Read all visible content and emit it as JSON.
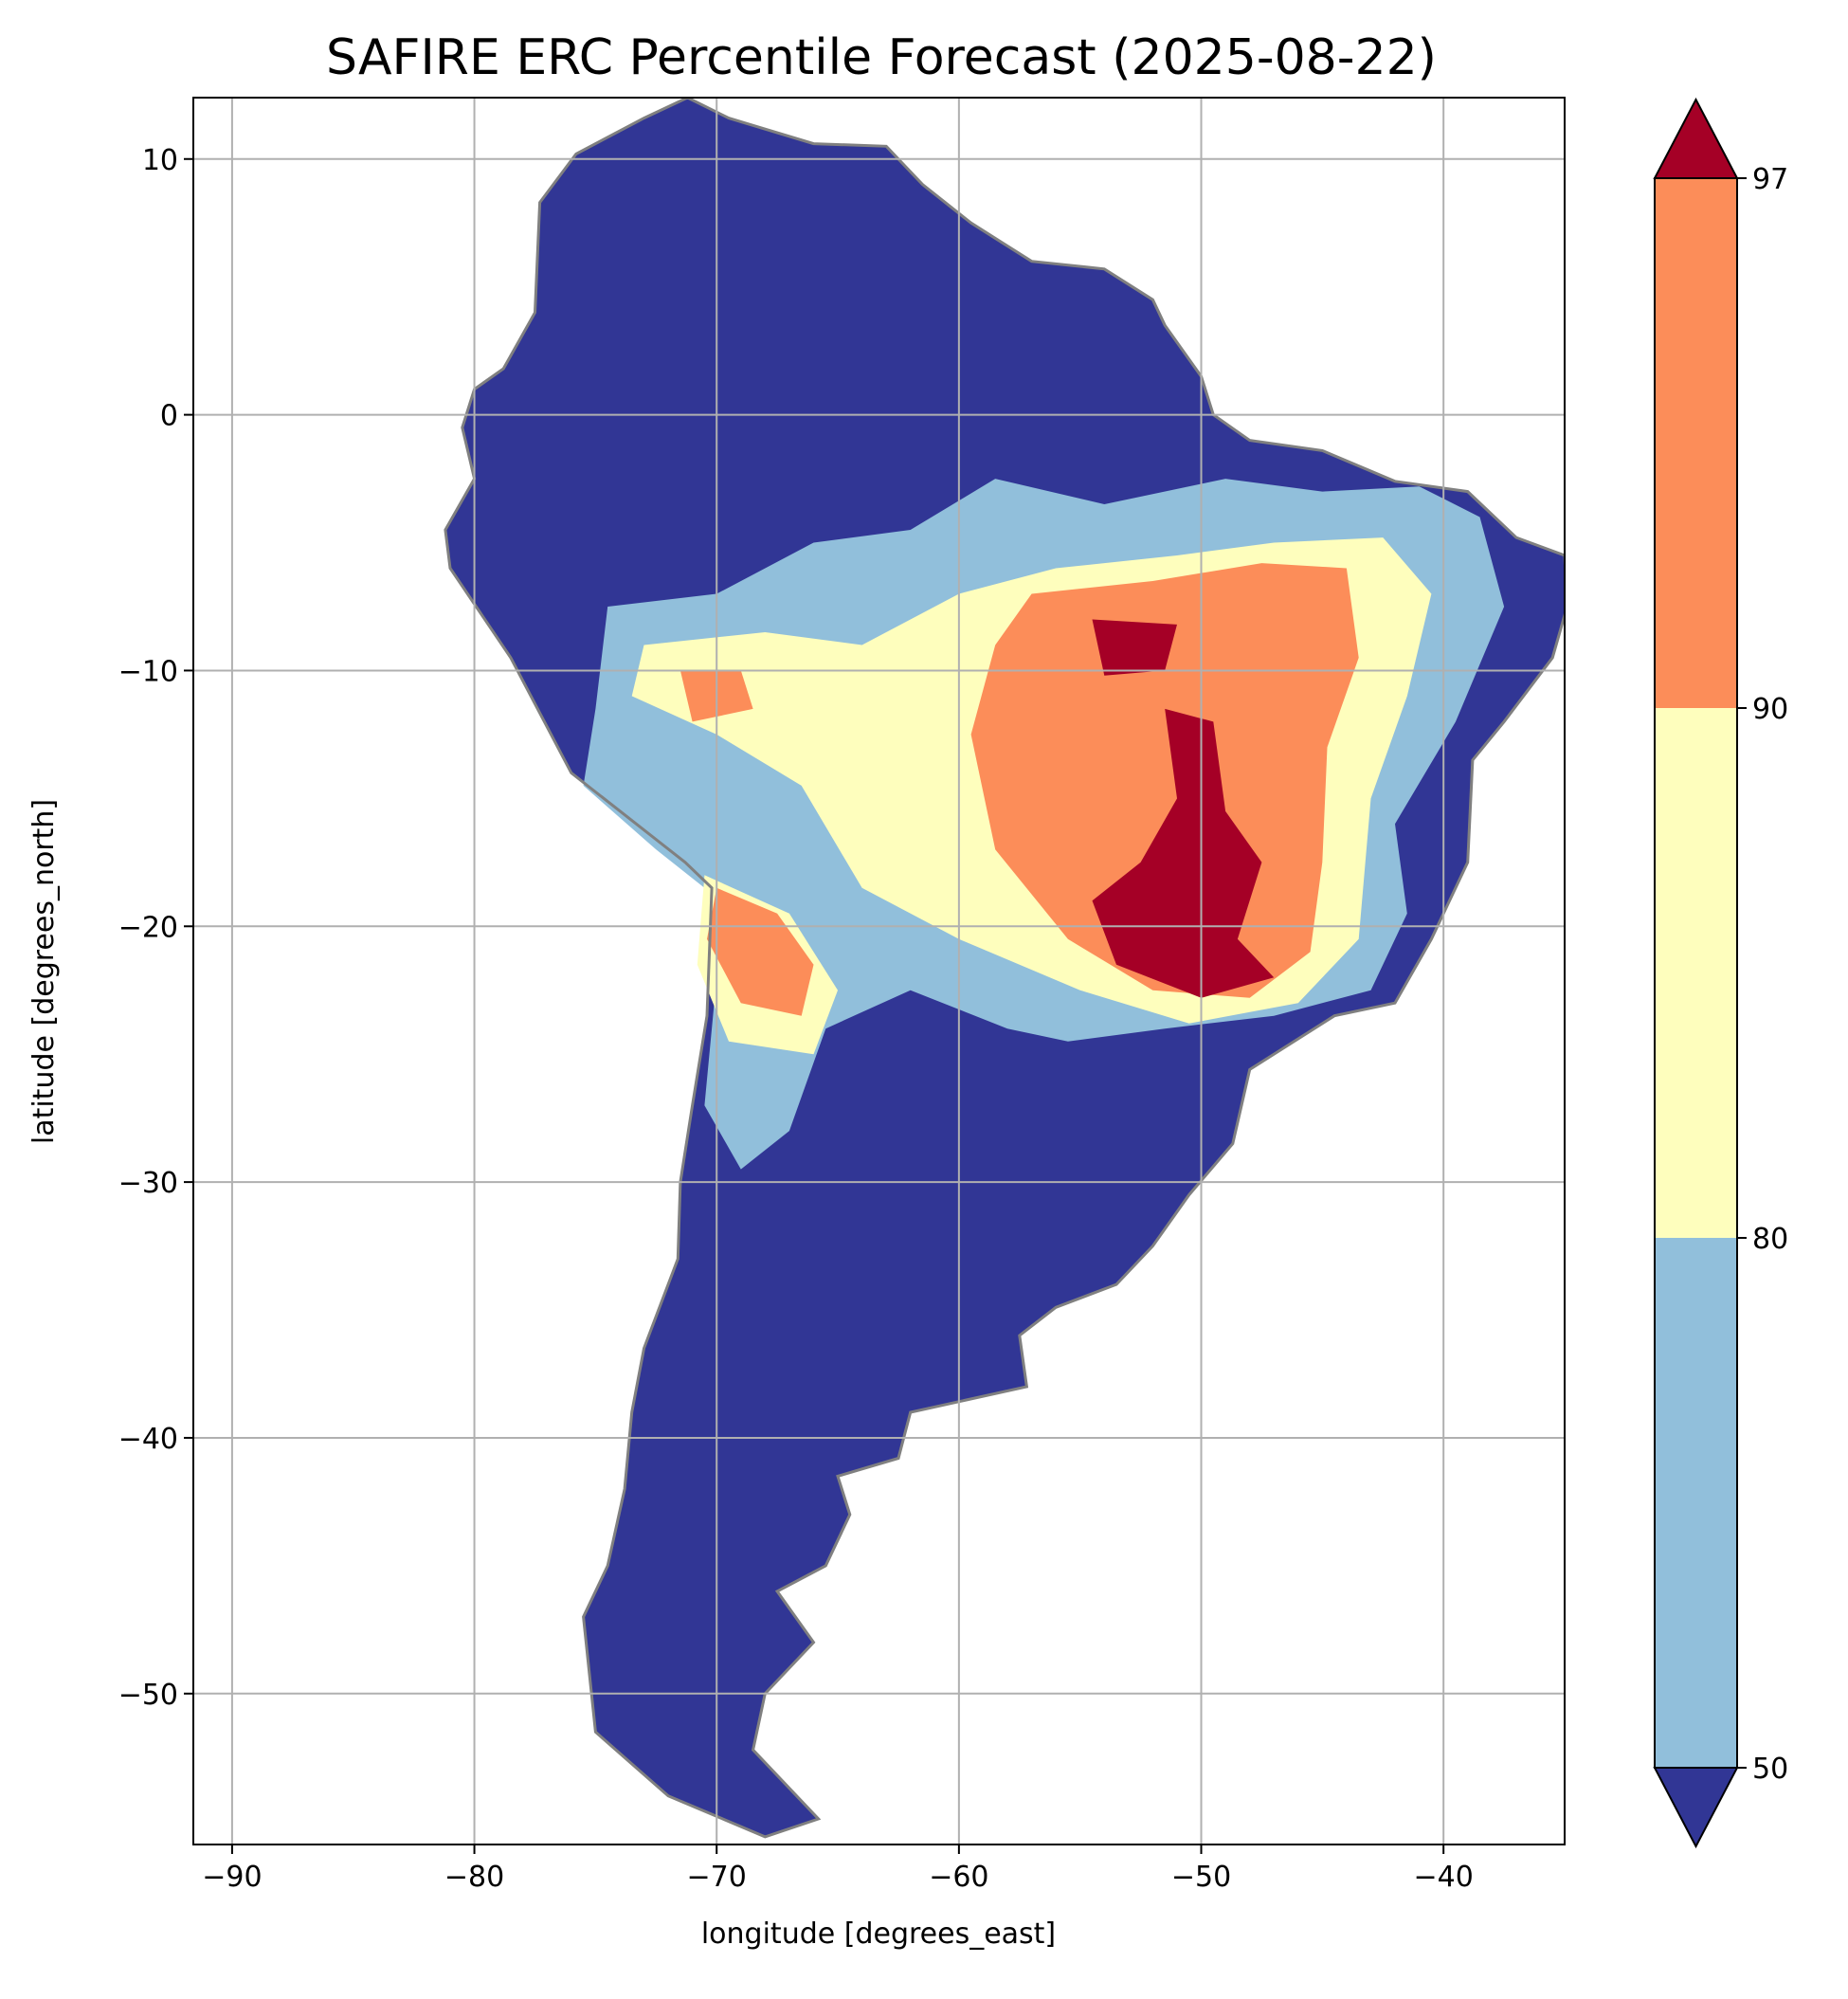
{
  "title": "SAFIRE ERC Percentile Forecast (2025-08-22)",
  "x_axis": {
    "label": "longitude [degrees_east]",
    "min": -91.6,
    "max": -35.0,
    "ticks": [
      -90,
      -80,
      -70,
      -60,
      -50,
      -40
    ],
    "tick_labels": [
      "−90",
      "−80",
      "−70",
      "−60",
      "−50",
      "−40"
    ]
  },
  "y_axis": {
    "label": "latitude [degrees_north]",
    "min": -55.9,
    "max": 12.4,
    "ticks": [
      10,
      0,
      -10,
      -20,
      -30,
      -40,
      -50
    ],
    "tick_labels": [
      "10",
      "0",
      "−10",
      "−20",
      "−30",
      "−40",
      "−50"
    ]
  },
  "grid": true,
  "colorbar": {
    "position": "right",
    "extend": "both",
    "boundaries": [
      50,
      80,
      90,
      97
    ],
    "tick_labels": [
      "50",
      "80",
      "90",
      "97"
    ],
    "colors": {
      "below_50": "#313695",
      "50_80": "#91bfdb",
      "80_90": "#fefebd",
      "90_97": "#fc8d59",
      "above_97": "#a50026"
    }
  },
  "colors": {
    "land_low": "#313695",
    "border": "#808080",
    "grid": "#b0b0b0"
  },
  "chart_data": {
    "type": "heatmap",
    "title": "SAFIRE ERC Percentile Forecast (2025-08-22)",
    "xlabel": "longitude [degrees_east]",
    "ylabel": "latitude [degrees_north]",
    "xlim": [
      -91.6,
      -35.0
    ],
    "ylim": [
      -55.9,
      12.4
    ],
    "legend": "colorbar right",
    "continent_outline_lonlat": [
      [
        -77.3,
        8.3
      ],
      [
        -75.8,
        10.2
      ],
      [
        -73.0,
        11.6
      ],
      [
        -71.2,
        12.4
      ],
      [
        -69.5,
        11.6
      ],
      [
        -66.0,
        10.6
      ],
      [
        -63.0,
        10.5
      ],
      [
        -61.5,
        9.0
      ],
      [
        -59.5,
        7.5
      ],
      [
        -57.0,
        6.0
      ],
      [
        -54.0,
        5.7
      ],
      [
        -52.0,
        4.5
      ],
      [
        -51.5,
        3.5
      ],
      [
        -50.0,
        1.5
      ],
      [
        -49.5,
        0.0
      ],
      [
        -48.0,
        -1.0
      ],
      [
        -45.0,
        -1.4
      ],
      [
        -42.0,
        -2.6
      ],
      [
        -39.0,
        -3.0
      ],
      [
        -37.0,
        -4.8
      ],
      [
        -35.0,
        -5.5
      ],
      [
        -34.9,
        -7.5
      ],
      [
        -35.5,
        -9.5
      ],
      [
        -37.5,
        -12.0
      ],
      [
        -38.8,
        -13.5
      ],
      [
        -39.0,
        -17.5
      ],
      [
        -40.5,
        -20.5
      ],
      [
        -42.0,
        -23.0
      ],
      [
        -44.5,
        -23.5
      ],
      [
        -48.0,
        -25.6
      ],
      [
        -48.7,
        -28.5
      ],
      [
        -50.5,
        -30.5
      ],
      [
        -52.0,
        -32.5
      ],
      [
        -53.5,
        -34.0
      ],
      [
        -56.0,
        -34.9
      ],
      [
        -57.5,
        -36.0
      ],
      [
        -57.2,
        -38.0
      ],
      [
        -62.0,
        -39.0
      ],
      [
        -62.5,
        -40.8
      ],
      [
        -65.0,
        -41.5
      ],
      [
        -64.5,
        -43.0
      ],
      [
        -65.5,
        -45.0
      ],
      [
        -67.5,
        -46.0
      ],
      [
        -66.0,
        -48.0
      ],
      [
        -68.0,
        -50.0
      ],
      [
        -68.5,
        -52.2
      ],
      [
        -65.8,
        -54.9
      ],
      [
        -68.0,
        -55.6
      ],
      [
        -72.0,
        -54.0
      ],
      [
        -75.0,
        -51.5
      ],
      [
        -75.5,
        -47.0
      ],
      [
        -74.5,
        -45.0
      ],
      [
        -73.8,
        -42.0
      ],
      [
        -73.5,
        -39.0
      ],
      [
        -73.0,
        -36.5
      ],
      [
        -71.6,
        -33.0
      ],
      [
        -71.5,
        -30.0
      ],
      [
        -71.0,
        -27.0
      ],
      [
        -70.4,
        -23.5
      ],
      [
        -70.2,
        -18.5
      ],
      [
        -71.3,
        -17.5
      ],
      [
        -76.0,
        -14.0
      ],
      [
        -78.5,
        -9.5
      ],
      [
        -81.0,
        -6.0
      ],
      [
        -81.2,
        -4.5
      ],
      [
        -80.0,
        -2.5
      ],
      [
        -80.5,
        -0.5
      ],
      [
        -80.0,
        1.0
      ],
      [
        -78.8,
        1.8
      ],
      [
        -77.5,
        4.0
      ],
      [
        -77.3,
        8.3
      ]
    ],
    "zones": [
      {
        "category": "50_80",
        "polygon_lonlat": [
          [
            -74.5,
            -7.5
          ],
          [
            -70.0,
            -7.0
          ],
          [
            -66.0,
            -5.0
          ],
          [
            -62.0,
            -4.5
          ],
          [
            -58.5,
            -2.5
          ],
          [
            -54.0,
            -3.5
          ],
          [
            -49.0,
            -2.5
          ],
          [
            -45.0,
            -3.0
          ],
          [
            -41.0,
            -2.8
          ],
          [
            -38.5,
            -4.0
          ],
          [
            -37.5,
            -7.5
          ],
          [
            -39.5,
            -12.0
          ],
          [
            -42.0,
            -16.0
          ],
          [
            -41.5,
            -19.5
          ],
          [
            -43.0,
            -22.5
          ],
          [
            -47.0,
            -23.5
          ],
          [
            -51.5,
            -24.0
          ],
          [
            -55.5,
            -24.5
          ],
          [
            -58.0,
            -24.0
          ],
          [
            -62.0,
            -22.5
          ],
          [
            -65.5,
            -24.0
          ],
          [
            -67.0,
            -28.0
          ],
          [
            -69.0,
            -29.5
          ],
          [
            -70.5,
            -27.0
          ],
          [
            -70.0,
            -22.0
          ],
          [
            -70.5,
            -18.5
          ],
          [
            -72.5,
            -17.0
          ],
          [
            -75.5,
            -14.5
          ],
          [
            -75.0,
            -11.5
          ]
        ]
      },
      {
        "category": "80_90",
        "polygon_lonlat": [
          [
            -73.0,
            -9.0
          ],
          [
            -68.0,
            -8.5
          ],
          [
            -64.0,
            -9.0
          ],
          [
            -60.0,
            -7.0
          ],
          [
            -56.0,
            -6.0
          ],
          [
            -51.0,
            -5.5
          ],
          [
            -47.0,
            -5.0
          ],
          [
            -42.5,
            -4.8
          ],
          [
            -40.5,
            -7.0
          ],
          [
            -41.5,
            -11.0
          ],
          [
            -43.0,
            -15.0
          ],
          [
            -43.5,
            -20.5
          ],
          [
            -46.0,
            -23.0
          ],
          [
            -50.5,
            -23.8
          ],
          [
            -55.0,
            -22.5
          ],
          [
            -60.0,
            -20.5
          ],
          [
            -64.0,
            -18.5
          ],
          [
            -66.5,
            -14.5
          ],
          [
            -70.0,
            -12.5
          ],
          [
            -73.5,
            -11.0
          ]
        ]
      },
      {
        "category": "80_90",
        "polygon_lonlat": [
          [
            -70.5,
            -18.0
          ],
          [
            -67.0,
            -19.5
          ],
          [
            -65.0,
            -22.5
          ],
          [
            -66.0,
            -25.0
          ],
          [
            -69.5,
            -24.5
          ],
          [
            -70.8,
            -21.5
          ]
        ]
      },
      {
        "category": "90_97",
        "polygon_lonlat": [
          [
            -57.0,
            -7.0
          ],
          [
            -52.0,
            -6.5
          ],
          [
            -47.5,
            -5.8
          ],
          [
            -44.0,
            -6.0
          ],
          [
            -43.5,
            -9.5
          ],
          [
            -44.8,
            -13.0
          ],
          [
            -45.0,
            -17.5
          ],
          [
            -45.5,
            -21.0
          ],
          [
            -48.0,
            -22.8
          ],
          [
            -52.0,
            -22.5
          ],
          [
            -55.5,
            -20.5
          ],
          [
            -58.5,
            -17.0
          ],
          [
            -59.5,
            -12.5
          ],
          [
            -58.5,
            -9.0
          ]
        ]
      },
      {
        "category": "90_97",
        "polygon_lonlat": [
          [
            -70.0,
            -18.5
          ],
          [
            -67.5,
            -19.5
          ],
          [
            -66.0,
            -21.5
          ],
          [
            -66.5,
            -23.5
          ],
          [
            -69.0,
            -23.0
          ],
          [
            -70.4,
            -20.5
          ]
        ]
      },
      {
        "category": "90_97",
        "polygon_lonlat": [
          [
            -71.5,
            -10.0
          ],
          [
            -69.0,
            -10.0
          ],
          [
            -68.5,
            -11.5
          ],
          [
            -71.0,
            -12.0
          ]
        ]
      },
      {
        "category": "above_97",
        "polygon_lonlat": [
          [
            -54.5,
            -8.0
          ],
          [
            -51.0,
            -8.2
          ],
          [
            -51.5,
            -10.0
          ],
          [
            -54.0,
            -10.2
          ]
        ]
      },
      {
        "category": "above_97",
        "polygon_lonlat": [
          [
            -51.5,
            -11.5
          ],
          [
            -49.5,
            -12.0
          ],
          [
            -49.0,
            -15.5
          ],
          [
            -47.5,
            -17.5
          ],
          [
            -48.5,
            -20.5
          ],
          [
            -47.0,
            -22.0
          ],
          [
            -50.0,
            -22.8
          ],
          [
            -53.5,
            -21.5
          ],
          [
            -54.5,
            -19.0
          ],
          [
            -52.5,
            -17.5
          ],
          [
            -51.0,
            -15.0
          ]
        ]
      }
    ]
  }
}
